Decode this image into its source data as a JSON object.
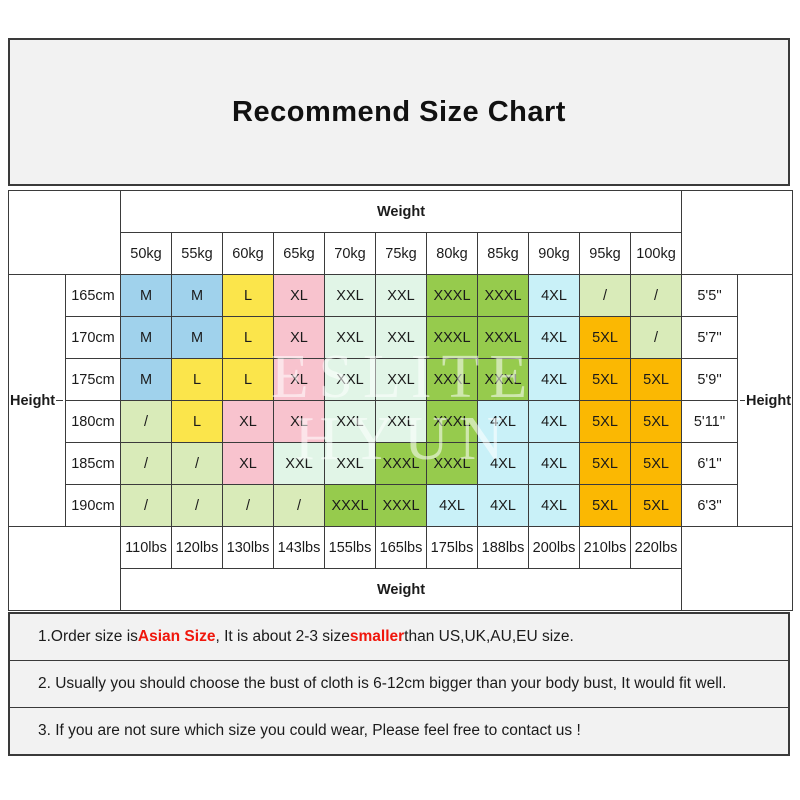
{
  "title": "Recommend Size Chart",
  "watermark": "ESLITE HYUN",
  "table": {
    "weight_label": "Weight",
    "height_label": "Height",
    "kg_headers": [
      "50kg",
      "55kg",
      "60kg",
      "65kg",
      "70kg",
      "75kg",
      "80kg",
      "85kg",
      "90kg",
      "95kg",
      "100kg"
    ],
    "lbs_headers": [
      "110lbs",
      "120lbs",
      "130lbs",
      "143lbs",
      "155lbs",
      "165lbs",
      "175lbs",
      "188lbs",
      "200lbs",
      "210lbs",
      "220lbs"
    ],
    "rows": [
      {
        "cm": "165cm",
        "ft": "5'5''",
        "sizes": [
          "M",
          "M",
          "L",
          "XL",
          "XXL",
          "XXL",
          "XXXL",
          "XXXL",
          "4XL",
          "/",
          "/"
        ]
      },
      {
        "cm": "170cm",
        "ft": "5'7''",
        "sizes": [
          "M",
          "M",
          "L",
          "XL",
          "XXL",
          "XXL",
          "XXXL",
          "XXXL",
          "4XL",
          "5XL",
          "/"
        ]
      },
      {
        "cm": "175cm",
        "ft": "5'9''",
        "sizes": [
          "M",
          "L",
          "L",
          "XL",
          "XXL",
          "XXL",
          "XXXL",
          "XXXL",
          "4XL",
          "5XL",
          "5XL"
        ]
      },
      {
        "cm": "180cm",
        "ft": "5'11''",
        "sizes": [
          "/",
          "L",
          "XL",
          "XL",
          "XXL",
          "XXL",
          "XXXL",
          "4XL",
          "4XL",
          "5XL",
          "5XL"
        ]
      },
      {
        "cm": "185cm",
        "ft": "6'1''",
        "sizes": [
          "/",
          "/",
          "XL",
          "XXL",
          "XXL",
          "XXXL",
          "XXXL",
          "4XL",
          "4XL",
          "5XL",
          "5XL"
        ]
      },
      {
        "cm": "190cm",
        "ft": "6'3''",
        "sizes": [
          "/",
          "/",
          "/",
          "/",
          "XXXL",
          "XXXL",
          "4XL",
          "4XL",
          "4XL",
          "5XL",
          "5XL"
        ]
      }
    ],
    "size_colors": {
      "M": "#A0D2EC",
      "L": "#FBE54B",
      "XL": "#F8C3CE",
      "XXL": "#E1F5E7",
      "XXXL": "#96CB4D",
      "4XL": "#C9F1F8",
      "5XL": "#FBB802",
      "/": "#D9EBB9"
    }
  },
  "notes": [
    {
      "segments": [
        {
          "text": "1.Order size is "
        },
        {
          "text": "Asian Size",
          "red": true
        },
        {
          "text": ", It is about 2-3 size "
        },
        {
          "text": "smaller",
          "red": true
        },
        {
          "text": " than US,UK,AU,EU size."
        }
      ]
    },
    {
      "segments": [
        {
          "text": "2. Usually you should choose the bust of cloth is 6-12cm bigger than your body bust, It would fit well."
        }
      ]
    },
    {
      "segments": [
        {
          "text": "3. If you are not sure which size you could wear, Please feel free to contact us !"
        }
      ]
    }
  ],
  "colors": {
    "accent_red": "#F0160C"
  }
}
